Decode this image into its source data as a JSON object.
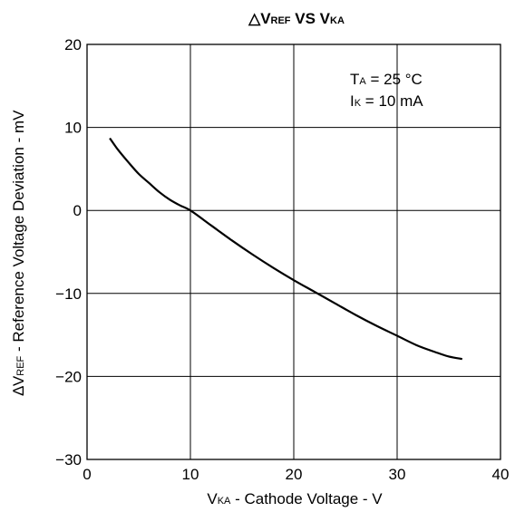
{
  "chart_data": {
    "type": "line",
    "title": {
      "delta": "△",
      "v1": "V",
      "sub1": "REF",
      "mid": " VS ",
      "v2": "V",
      "sub2": "KA"
    },
    "xlabel": {
      "main": "V",
      "sub": "KA",
      "rest": " - Cathode Voltage - V"
    },
    "ylabel": {
      "delta": "∆",
      "main": "V",
      "sub": "REF",
      "rest": " - Reference Voltage Deviation - mV"
    },
    "xlim": [
      0,
      40
    ],
    "ylim": [
      -30,
      20
    ],
    "x_ticks": [
      0,
      10,
      20,
      30,
      40
    ],
    "x_tick_labels": [
      "0",
      "10",
      "20",
      "30",
      "40"
    ],
    "y_ticks": [
      20,
      10,
      0,
      -10,
      -20,
      -30
    ],
    "y_tick_labels": [
      "20",
      "10",
      "0",
      "−10",
      "−20",
      "−30"
    ],
    "grid": true,
    "annotations": [
      {
        "main": "T",
        "sub": "A",
        "rest": " = 25 °C"
      },
      {
        "main": "I",
        "sub": "K",
        "rest": " = 10 mA"
      }
    ],
    "series": [
      {
        "x": [
          2.2,
          3,
          4,
          5,
          6,
          7,
          8,
          9,
          10,
          12,
          14,
          16,
          18,
          20,
          22,
          24,
          26,
          28,
          30,
          32,
          34,
          35,
          36.3
        ],
        "y": [
          8.7,
          7.3,
          5.8,
          4.4,
          3.3,
          2.2,
          1.3,
          0.6,
          0,
          -1.8,
          -3.6,
          -5.3,
          -6.9,
          -8.4,
          -9.8,
          -11.2,
          -12.6,
          -13.9,
          -15.1,
          -16.3,
          -17.2,
          -17.6,
          -17.9
        ]
      }
    ]
  }
}
